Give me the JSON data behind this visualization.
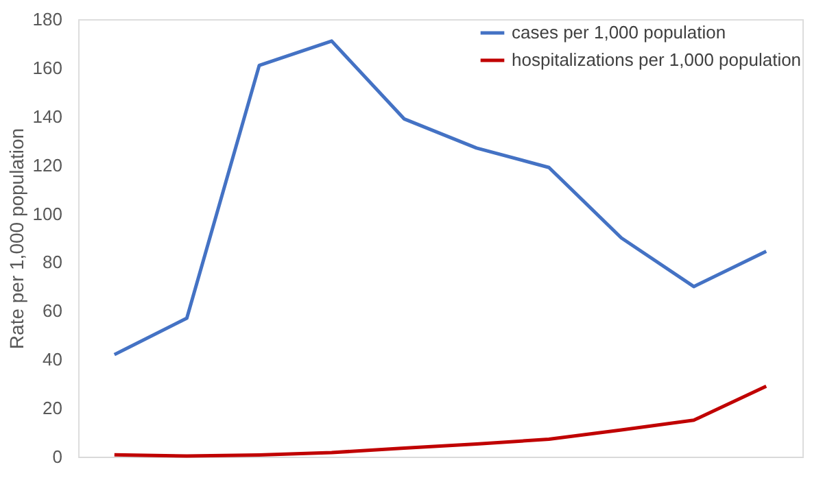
{
  "chart_data": {
    "type": "line",
    "ylabel": "Rate per 1,000 population",
    "categories": [
      null,
      null,
      null,
      null,
      null,
      null,
      null,
      null,
      null,
      null
    ],
    "series": [
      {
        "name": "cases per 1,000 population",
        "color": "#4472c4",
        "values": [
          42,
          57,
          161,
          171,
          139,
          127,
          119,
          90,
          70,
          84.5
        ]
      },
      {
        "name": "hospitalizations per 1,000 population",
        "color": "#c00000",
        "values": [
          0.8,
          0.3,
          0.7,
          1.7,
          3.5,
          5.2,
          7.2,
          11,
          15,
          29
        ]
      }
    ],
    "ylim": [
      0,
      180
    ],
    "yticks": [
      0,
      20,
      40,
      60,
      80,
      100,
      120,
      140,
      160,
      180
    ],
    "grid": false,
    "legend": "top right",
    "tick_labels": "y",
    "marker": "none",
    "line_style": "solid"
  }
}
